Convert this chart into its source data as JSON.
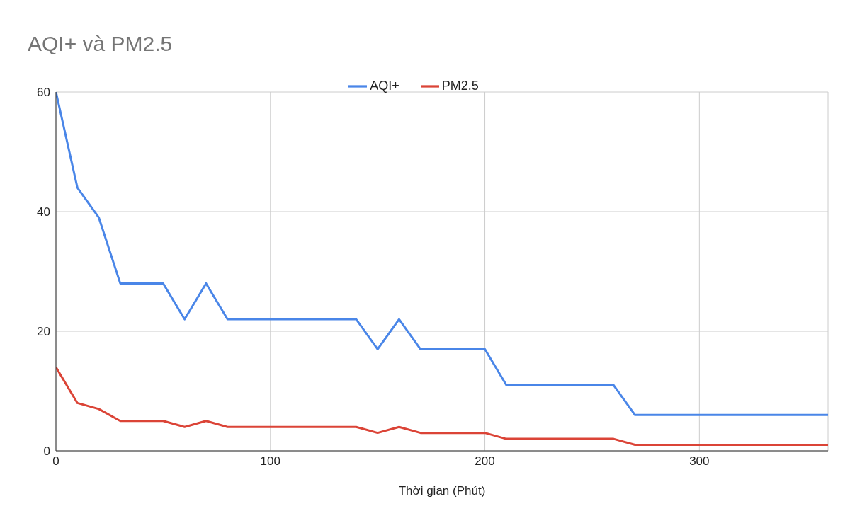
{
  "chart_data": {
    "type": "line",
    "title": "AQI+ và PM2.5",
    "xlabel": "Thời gian (Phút)",
    "x": [
      0,
      10,
      20,
      30,
      40,
      50,
      60,
      70,
      80,
      90,
      100,
      110,
      120,
      130,
      140,
      150,
      160,
      170,
      180,
      190,
      200,
      210,
      220,
      230,
      240,
      250,
      260,
      270,
      280,
      290,
      300,
      310,
      320,
      330,
      340,
      350,
      360
    ],
    "series": [
      {
        "name": "AQI+",
        "color": "#4a86e8",
        "values": [
          60,
          44,
          39,
          28,
          28,
          28,
          22,
          28,
          22,
          22,
          22,
          22,
          22,
          22,
          22,
          17,
          22,
          17,
          17,
          17,
          17,
          11,
          11,
          11,
          11,
          11,
          11,
          6,
          6,
          6,
          6,
          6,
          6,
          6,
          6,
          6,
          6
        ]
      },
      {
        "name": "PM2.5",
        "color": "#db4437",
        "values": [
          14,
          8,
          7,
          5,
          5,
          5,
          4,
          5,
          4,
          4,
          4,
          4,
          4,
          4,
          4,
          3,
          4,
          3,
          3,
          3,
          3,
          2,
          2,
          2,
          2,
          2,
          2,
          1,
          1,
          1,
          1,
          1,
          1,
          1,
          1,
          1,
          1
        ]
      }
    ],
    "xlim": [
      0,
      360
    ],
    "xticks": [
      0,
      100,
      200,
      300
    ],
    "ylim": [
      0,
      60
    ],
    "yticks": [
      0,
      20,
      40,
      60
    ],
    "grid": true,
    "legend": "top",
    "marker": "none",
    "line_style": "solid"
  }
}
